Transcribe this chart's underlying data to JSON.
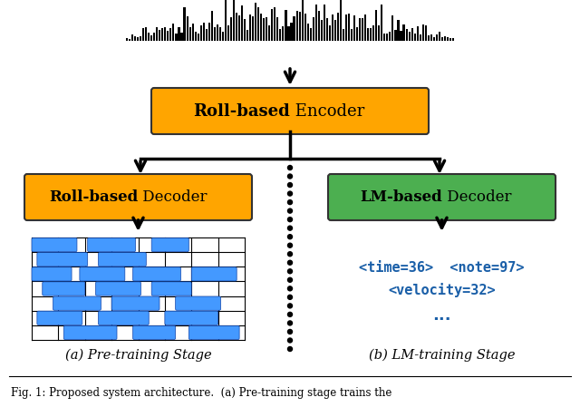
{
  "fig_width": 6.4,
  "fig_height": 4.49,
  "bg_color": "#ffffff",
  "orange_color": "#FFA500",
  "green_color": "#4CAF50",
  "blue_color": "#4499FF",
  "text_color_dark": "#000000",
  "text_color_blue": "#1a5fa8",
  "caption_left": "(a) Pre-training Stage",
  "caption_right": "(b) LM-training Stage",
  "token_text_line1": "<time=36>  <note=97>",
  "token_text_line2": "<velocity=32>",
  "token_text_line3": "...",
  "fig_caption": "Fig. 1: Proposed system architecture.  (a) Pre-training stage trains the"
}
